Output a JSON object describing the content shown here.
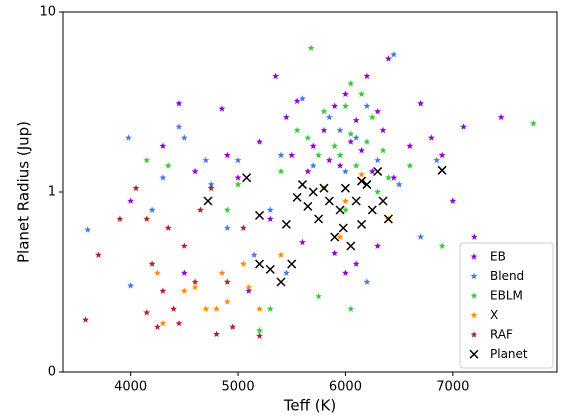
{
  "chart_data": {
    "type": "scatter",
    "x_label": "Teff (K)",
    "y_label": "Planet Radius (Jup)",
    "xlim": [
      3370,
      7970
    ],
    "ylim": [
      0,
      10
    ],
    "xticks": [
      4000,
      5000,
      6000,
      7000
    ],
    "yticks": [
      0,
      1,
      10
    ],
    "y_scale": "symlog",
    "legend": "lower right",
    "series": [
      {
        "name": "EB",
        "color": "#9400d3",
        "marker": "star",
        "x": [
          4450,
          4850,
          5350,
          5550,
          5900,
          6200,
          6400,
          6000,
          6100,
          6300,
          5800,
          5700,
          6050,
          5500,
          5200,
          4900,
          4600,
          4300,
          5000,
          6600,
          6800,
          7100,
          7450,
          6900,
          7000,
          7200,
          5950,
          6150,
          6250,
          5850,
          6450,
          5650,
          5600,
          5900,
          6100,
          6300,
          5300,
          4500,
          5100,
          6000,
          6700,
          4000,
          6350,
          5450
        ],
        "values": [
          3.1,
          2.9,
          4.4,
          3.2,
          3.0,
          4.4,
          5.5,
          3.5,
          2.5,
          2.8,
          2.2,
          1.8,
          1.9,
          1.6,
          1.9,
          1.6,
          1.3,
          1.8,
          1.2,
          1.8,
          2.0,
          2.3,
          2.6,
          1.6,
          0.95,
          0.75,
          1.4,
          1.7,
          1.3,
          1.5,
          1.2,
          1.3,
          0.72,
          0.66,
          0.6,
          0.7,
          0.85,
          0.55,
          0.45,
          0.55,
          3.1,
          0.95,
          2.2,
          2.6
        ]
      },
      {
        "name": "Blend",
        "color": "#4477e8",
        "marker": "star",
        "x": [
          3600,
          3980,
          4000,
          4300,
          4450,
          4700,
          4500,
          5000,
          5400,
          5700,
          6000,
          6300,
          6450,
          5600,
          5850,
          6200,
          6500,
          6850,
          4200,
          4900,
          5150,
          5450,
          6200,
          6700,
          5300,
          4750,
          6100,
          5950
        ],
        "values": [
          0.79,
          2.0,
          0.48,
          1.2,
          2.3,
          1.5,
          2.0,
          1.5,
          1.6,
          1.4,
          1.3,
          1.5,
          5.8,
          3.3,
          2.6,
          3.0,
          1.1,
          1.5,
          0.9,
          0.8,
          0.65,
          0.55,
          0.5,
          0.75,
          0.9,
          1.1,
          2.0,
          2.2
        ]
      },
      {
        "name": "EBLM",
        "color": "#33cc33",
        "marker": "star",
        "x": [
          5680,
          7750,
          4350,
          4150,
          5550,
          5800,
          6000,
          6050,
          6150,
          6250,
          5950,
          6050,
          6200,
          6100,
          5900,
          5750,
          5650,
          6350,
          6400,
          6600,
          6900,
          5300,
          5200,
          6050,
          5750,
          5400,
          5000,
          4900,
          6300,
          6000
        ],
        "values": [
          6.3,
          2.4,
          1.4,
          1.5,
          2.2,
          2.8,
          3.0,
          4.0,
          3.5,
          2.6,
          1.6,
          2.1,
          1.9,
          1.4,
          1.8,
          1.6,
          2.0,
          1.7,
          1.2,
          1.4,
          0.7,
          0.35,
          0.23,
          0.35,
          0.42,
          1.3,
          1.1,
          0.9,
          1.0,
          0.9
        ]
      },
      {
        "name": "X",
        "color": "#ff8c00",
        "marker": "star",
        "x": [
          4300,
          4700,
          4800,
          4900,
          5200,
          4500,
          4600,
          4850,
          5050,
          5100,
          5400,
          5800,
          6000,
          6400,
          6150,
          4250,
          5950
        ],
        "values": [
          0.27,
          0.35,
          0.35,
          0.39,
          0.35,
          0.45,
          0.47,
          0.55,
          0.6,
          0.47,
          0.65,
          1.05,
          0.95,
          0.85,
          1.25,
          0.55,
          0.75
        ]
      },
      {
        "name": "RAF",
        "color": "#b22222",
        "marker": "star",
        "x": [
          3580,
          3700,
          3900,
          4050,
          4150,
          4200,
          4300,
          4450,
          4500,
          4650,
          4750,
          4800,
          4950,
          5200,
          4900,
          4400,
          4600,
          4150,
          4350,
          5050,
          4250
        ],
        "values": [
          0.29,
          0.65,
          0.85,
          1.05,
          0.85,
          0.6,
          0.45,
          0.27,
          0.7,
          0.9,
          1.05,
          0.21,
          0.25,
          0.2,
          0.5,
          0.35,
          0.5,
          0.33,
          0.8,
          0.8,
          0.25
        ]
      },
      {
        "name": "Planet",
        "color": "#000000",
        "marker": "x",
        "x": [
          4720,
          5080,
          5200,
          5200,
          5300,
          5400,
          5500,
          5600,
          5650,
          5700,
          5750,
          5800,
          5850,
          5900,
          5950,
          6000,
          6050,
          6100,
          6150,
          6200,
          6250,
          6300,
          6350,
          6400,
          6900,
          5450,
          5550,
          6150,
          5980
        ],
        "values": [
          0.95,
          1.2,
          0.87,
          0.6,
          0.57,
          0.5,
          0.6,
          1.1,
          0.92,
          1.0,
          0.85,
          1.05,
          0.95,
          0.75,
          0.9,
          1.05,
          0.7,
          0.95,
          0.82,
          1.1,
          0.9,
          1.3,
          0.95,
          0.85,
          1.32,
          0.82,
          0.97,
          1.15,
          0.8
        ]
      }
    ]
  }
}
